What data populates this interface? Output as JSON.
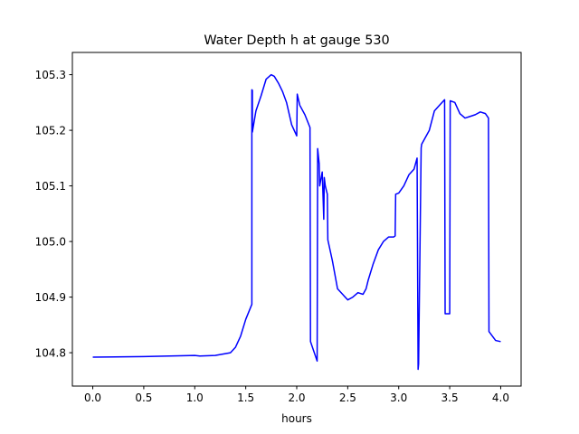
{
  "chart_data": {
    "type": "line",
    "title": "Water Depth h at gauge 530",
    "xlabel": "hours",
    "ylabel": "",
    "xlim": [
      -0.2,
      4.2
    ],
    "ylim": [
      104.74,
      105.34
    ],
    "xticks": [
      {
        "value": 0.0,
        "label": "0.0"
      },
      {
        "value": 0.5,
        "label": "0.5"
      },
      {
        "value": 1.0,
        "label": "1.0"
      },
      {
        "value": 1.5,
        "label": "1.5"
      },
      {
        "value": 2.0,
        "label": "2.0"
      },
      {
        "value": 2.5,
        "label": "2.5"
      },
      {
        "value": 3.0,
        "label": "3.0"
      },
      {
        "value": 3.5,
        "label": "3.5"
      },
      {
        "value": 4.0,
        "label": "4.0"
      }
    ],
    "yticks": [
      {
        "value": 104.8,
        "label": "104.8"
      },
      {
        "value": 104.9,
        "label": "104.9"
      },
      {
        "value": 105.0,
        "label": "105.0"
      },
      {
        "value": 105.1,
        "label": "105.1"
      },
      {
        "value": 105.2,
        "label": "105.2"
      },
      {
        "value": 105.3,
        "label": "105.3"
      }
    ],
    "grid": false,
    "line_color": "#0000ff",
    "series": [
      {
        "x": [
          0.0,
          0.5,
          1.0,
          1.05,
          1.2,
          1.35,
          1.4,
          1.45,
          1.5,
          1.56,
          1.56,
          1.565,
          1.565,
          1.6,
          1.65,
          1.7,
          1.75,
          1.78,
          1.82,
          1.86,
          1.9,
          1.95,
          2.0,
          2.005,
          2.03,
          2.08,
          2.13,
          2.135,
          2.2,
          2.205,
          2.22,
          2.225,
          2.25,
          2.26,
          2.265,
          2.27,
          2.28,
          2.3,
          2.305,
          2.35,
          2.4,
          2.45,
          2.5,
          2.55,
          2.6,
          2.65,
          2.68,
          2.7,
          2.75,
          2.8,
          2.85,
          2.9,
          2.95,
          2.965,
          2.97,
          3.0,
          3.05,
          3.1,
          3.15,
          3.18,
          3.19,
          3.195,
          3.22,
          3.225,
          3.3,
          3.35,
          3.4,
          3.45,
          3.455,
          3.5,
          3.505,
          3.55,
          3.6,
          3.65,
          3.7,
          3.75,
          3.8,
          3.85,
          3.88,
          3.885,
          3.95,
          4.0
        ],
        "y": [
          104.792,
          104.793,
          104.795,
          104.794,
          104.795,
          104.8,
          104.81,
          104.83,
          104.86,
          104.887,
          105.273,
          105.272,
          105.197,
          105.235,
          105.262,
          105.292,
          105.3,
          105.297,
          105.285,
          105.27,
          105.25,
          105.21,
          105.19,
          105.265,
          105.245,
          105.228,
          105.205,
          104.82,
          104.785,
          105.167,
          105.14,
          105.1,
          105.125,
          105.07,
          105.04,
          105.115,
          105.1,
          105.085,
          105.003,
          104.965,
          104.915,
          104.905,
          104.895,
          104.9,
          104.908,
          104.905,
          104.915,
          104.93,
          104.96,
          104.985,
          105.0,
          105.008,
          105.008,
          105.01,
          105.085,
          105.087,
          105.1,
          105.12,
          105.13,
          105.15,
          104.77,
          104.78,
          105.168,
          105.175,
          105.2,
          105.235,
          105.245,
          105.255,
          104.87,
          104.87,
          105.253,
          105.25,
          105.23,
          105.222,
          105.225,
          105.228,
          105.233,
          105.23,
          105.222,
          104.838,
          104.822,
          104.82
        ]
      }
    ]
  }
}
